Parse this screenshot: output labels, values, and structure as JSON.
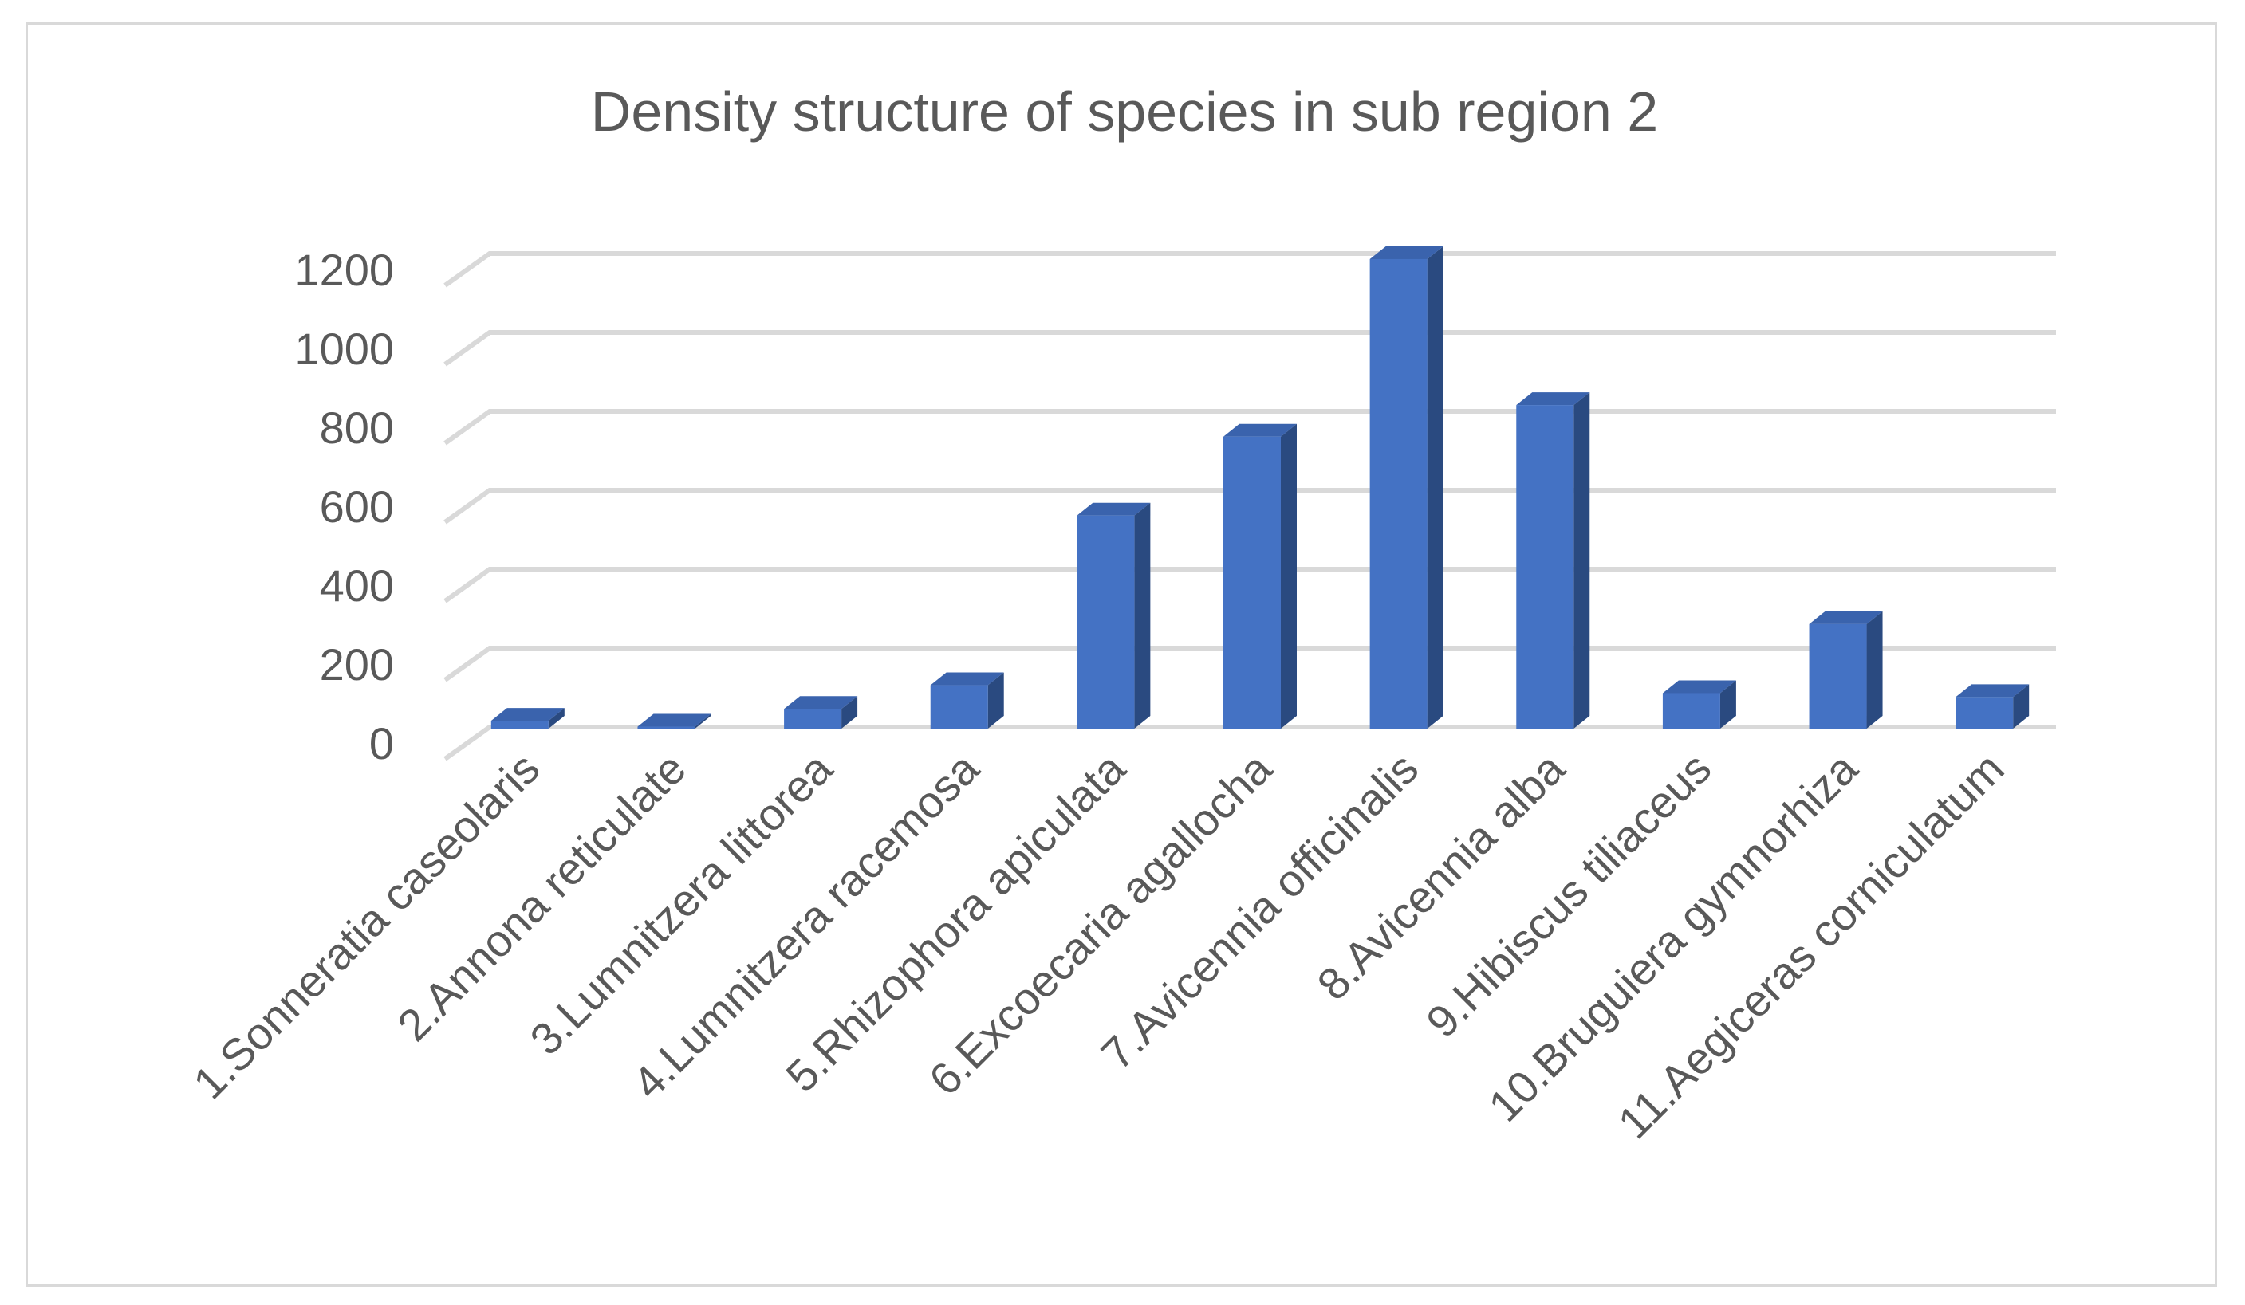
{
  "chart_data": {
    "type": "bar",
    "title": "Density structure of species in sub region 2",
    "xlabel": "",
    "ylabel": "",
    "ylim": [
      0,
      1200
    ],
    "yticks": [
      0,
      200,
      400,
      600,
      800,
      1000,
      1200
    ],
    "grid": true,
    "legend": "none",
    "categories": [
      "1.Sonneratia caseolaris",
      "2.Annona reticulate",
      "3.Lumnitzera littorea",
      "4.Lumnitzera racemosa",
      "5.Rhizophora apiculata",
      "6.Excoecaria agallocha",
      "7.Avicennia officinalis",
      "8.Avicennia alba",
      "9.Hibiscus tiliaceus",
      "10.Bruguiera gymnorhiza",
      "11.Aegiceras corniculatum"
    ],
    "values": [
      20,
      5,
      50,
      110,
      540,
      740,
      1190,
      820,
      90,
      265,
      80
    ],
    "colors": {
      "bar_front": "#4472c4",
      "bar_side": "#2a4a80",
      "bar_top": "#3a63ad"
    }
  }
}
